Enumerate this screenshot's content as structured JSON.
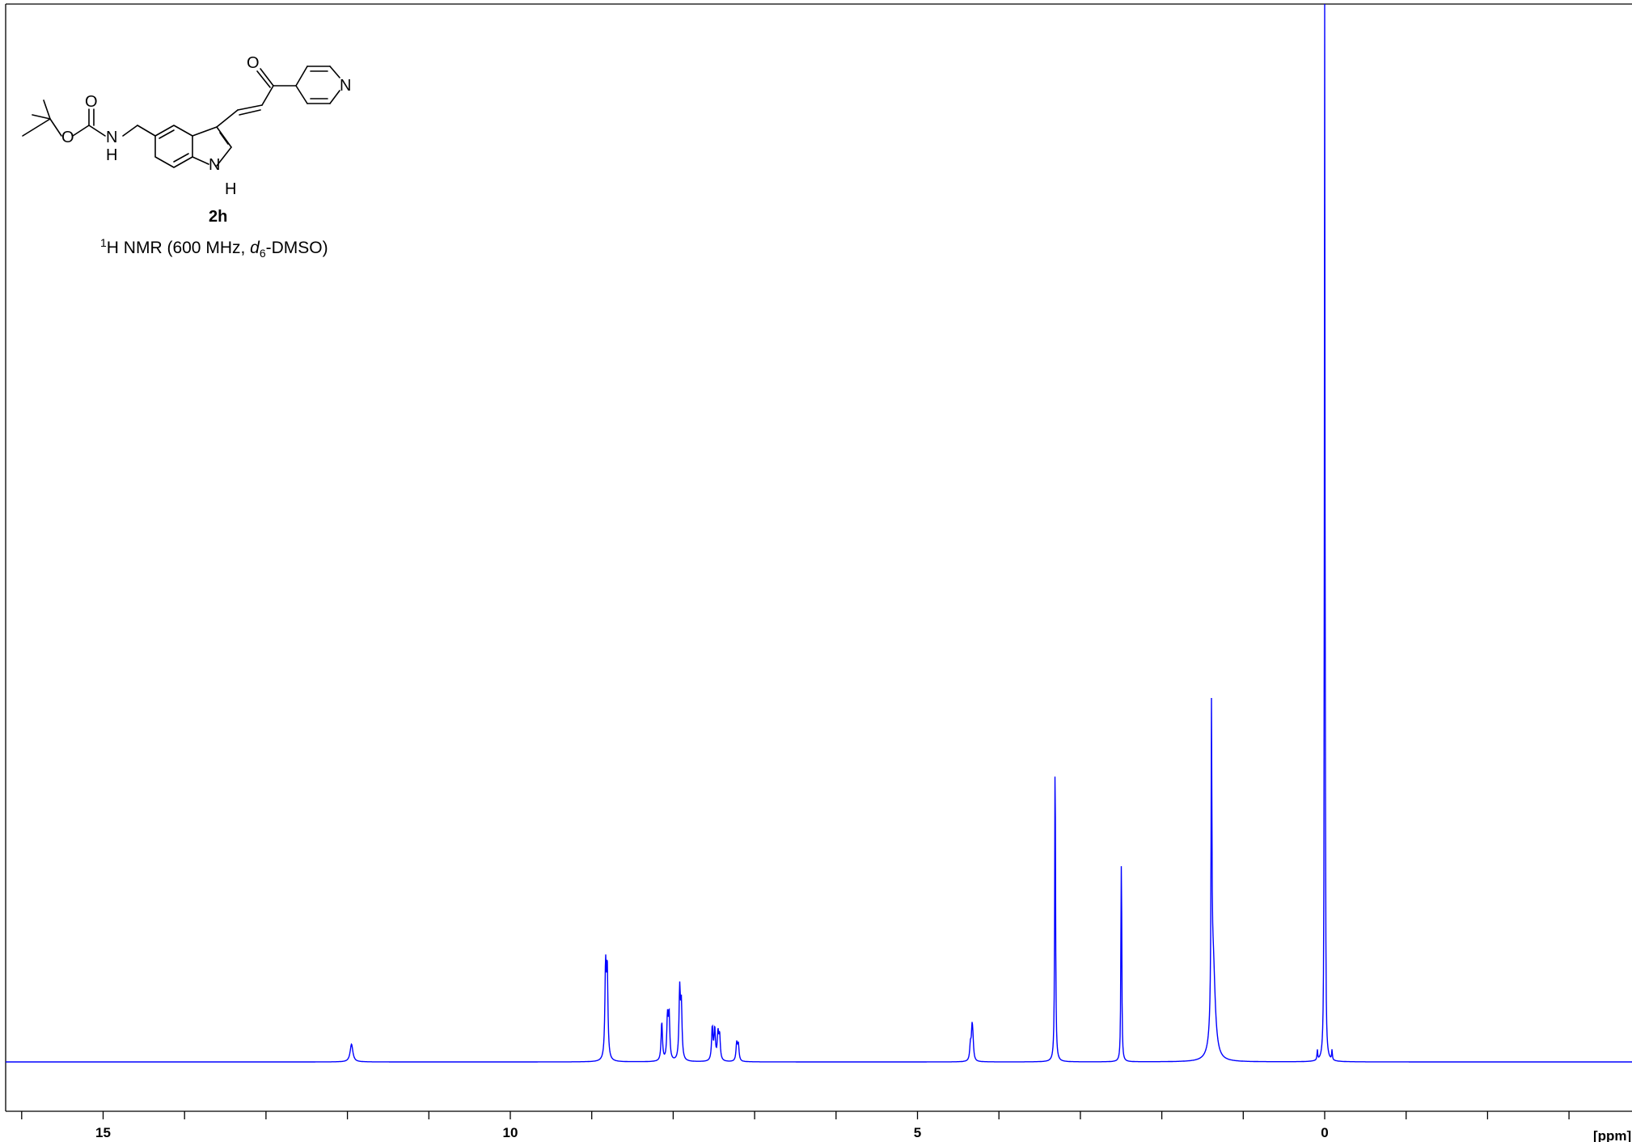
{
  "header": {
    "text": ""
  },
  "compound_label": "2h",
  "caption": {
    "nucleus_sup": "1",
    "nucleus": "H NMR (600 MHz, ",
    "solvent_italic": "d",
    "solvent_sub": "6",
    "solvent_rest": "-DMSO)"
  },
  "structure_atoms": {
    "o1": "O",
    "o2": "O",
    "nh1": "N",
    "nh1_h": "H",
    "o3": "O",
    "n_pyr": "N",
    "nh2": "N",
    "nh2_h": "H"
  },
  "chart_data": {
    "type": "line",
    "title": "",
    "xlabel": "[ppm]",
    "ylabel": "",
    "xlim": [
      16.0,
      -3.9
    ],
    "ylim": [
      -0.06,
      1.0
    ],
    "x_reversed": true,
    "x_ticks": [
      {
        "value": 15,
        "label": "15"
      },
      {
        "value": 10,
        "label": "10"
      },
      {
        "value": 5,
        "label": "5"
      },
      {
        "value": 0,
        "label": "0"
      }
    ],
    "minor_tick_step": 1,
    "line_color": "#0000ff",
    "peaks": [
      {
        "ppm": 11.95,
        "height": 0.016,
        "width": 0.02
      },
      {
        "ppm": 8.83,
        "height": 0.081,
        "width": 0.01
      },
      {
        "ppm": 8.81,
        "height": 0.078,
        "width": 0.01
      },
      {
        "ppm": 8.14,
        "height": 0.035,
        "width": 0.01
      },
      {
        "ppm": 8.07,
        "height": 0.038,
        "width": 0.01
      },
      {
        "ppm": 8.05,
        "height": 0.04,
        "width": 0.01
      },
      {
        "ppm": 7.92,
        "height": 0.062,
        "width": 0.01
      },
      {
        "ppm": 7.9,
        "height": 0.048,
        "width": 0.01
      },
      {
        "ppm": 7.52,
        "height": 0.03,
        "width": 0.01
      },
      {
        "ppm": 7.49,
        "height": 0.028,
        "width": 0.01
      },
      {
        "ppm": 7.45,
        "height": 0.024,
        "width": 0.01
      },
      {
        "ppm": 7.43,
        "height": 0.022,
        "width": 0.01
      },
      {
        "ppm": 7.22,
        "height": 0.016,
        "width": 0.01
      },
      {
        "ppm": 7.2,
        "height": 0.015,
        "width": 0.01
      },
      {
        "ppm": 4.35,
        "height": 0.014,
        "width": 0.01
      },
      {
        "ppm": 4.33,
        "height": 0.026,
        "width": 0.01
      },
      {
        "ppm": 4.32,
        "height": 0.014,
        "width": 0.01
      },
      {
        "ppm": 3.31,
        "height": 0.28,
        "width": 0.006
      },
      {
        "ppm": 2.5,
        "height": 0.09,
        "width": 0.005
      },
      {
        "ppm": 2.495,
        "height": 0.13,
        "width": 0.005
      },
      {
        "ppm": 1.39,
        "height": 0.266,
        "width": 0.006
      },
      {
        "ppm": 1.37,
        "height": 0.09,
        "width": 0.03
      },
      {
        "ppm": 0.09,
        "height": 0.009,
        "width": 0.005
      },
      {
        "ppm": 0.0,
        "height": 1.15,
        "width": 0.004
      },
      {
        "ppm": -0.01,
        "height": 0.08,
        "width": 0.004
      },
      {
        "ppm": -0.09,
        "height": 0.009,
        "width": 0.005
      }
    ]
  }
}
